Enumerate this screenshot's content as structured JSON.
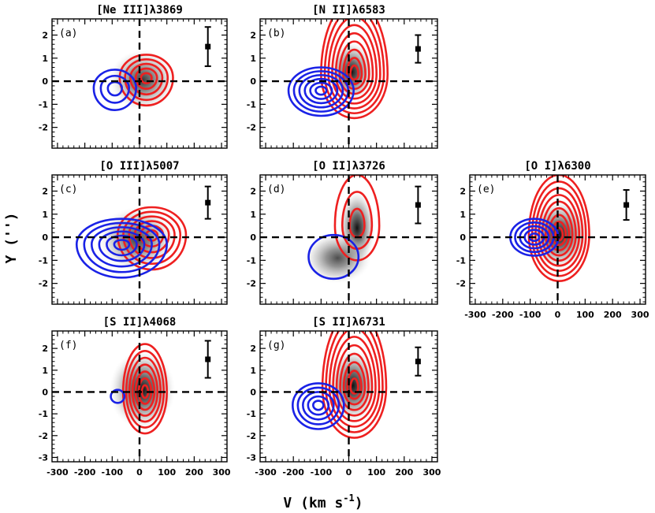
{
  "figure": {
    "xlabel": "V (km s",
    "xlabel_sup": "-1",
    "xlabel_close": ")",
    "ylabel": "Y ('')"
  },
  "chart_data": [
    {
      "type": "contour",
      "panel": "(a)",
      "title": "[Ne III]λ3869",
      "x_ticks": [
        -300,
        -200,
        -100,
        0,
        100,
        200,
        300
      ],
      "y_ticks": [
        2,
        1,
        0,
        -1,
        -2
      ],
      "xlim": [
        -320,
        320
      ],
      "ylim": [
        -2.9,
        2.7
      ],
      "x_tick_labels_shown": false,
      "grey": [
        {
          "x": 10,
          "y": 0.05,
          "sx": 120,
          "sy": 1.3,
          "a": 0.85
        }
      ],
      "red": {
        "x": 25,
        "y": 0.15,
        "sx": [
          105,
          90
        ],
        "sy": [
          1.2,
          1.0
        ],
        "levels": 5
      },
      "blue": {
        "x": -90,
        "y": -0.3,
        "sx": [
          85,
          70
        ],
        "sy": [
          0.95,
          0.8
        ],
        "levels": 3
      },
      "errorbar": {
        "x": 250,
        "y": 1.5,
        "err": 0.85
      }
    },
    {
      "type": "contour",
      "panel": "(b)",
      "title": "[N II]λ6583",
      "x_ticks": [
        -300,
        -200,
        -100,
        0,
        100,
        200,
        300
      ],
      "y_ticks": [
        2,
        1,
        0,
        -1,
        -2
      ],
      "xlim": [
        -320,
        320
      ],
      "ylim": [
        -2.9,
        2.7
      ],
      "x_tick_labels_shown": false,
      "grey": [
        {
          "x": 10,
          "y": 0.4,
          "sx": 80,
          "sy": 1.3,
          "a": 1.0
        }
      ],
      "red": {
        "x": 20,
        "y": 0.3,
        "sx": [
          120,
          120
        ],
        "sy": [
          1.9,
          3.2
        ],
        "levels": 9
      },
      "blue": {
        "x": -100,
        "y": -0.4,
        "sx": [
          135,
          100
        ],
        "sy": [
          1.1,
          1.0
        ],
        "levels": 6
      },
      "errorbar": {
        "x": 250,
        "y": 1.4,
        "err": 0.6
      }
    },
    {
      "type": "contour",
      "panel": "(c)",
      "title": "[O III]λ5007",
      "x_ticks": [
        -300,
        -200,
        -100,
        0,
        100,
        200,
        300
      ],
      "y_ticks": [
        2,
        1,
        0,
        -1,
        -2
      ],
      "xlim": [
        -320,
        320
      ],
      "ylim": [
        -2.9,
        2.7
      ],
      "x_tick_labels_shown": false,
      "grey": [
        {
          "x": -10,
          "y": -0.1,
          "sx": 140,
          "sy": 1.4,
          "a": 0.8
        }
      ],
      "red": {
        "x": 45,
        "y": 0.1,
        "sx": [
          135,
          115
        ],
        "sy": [
          1.5,
          1.2
        ],
        "levels": 6
      },
      "blue": {
        "x": -65,
        "y": -0.3,
        "sx": [
          190,
          140
        ],
        "sy": [
          1.45,
          1.1
        ],
        "levels": 6
      },
      "errorbar": {
        "x": 250,
        "y": 1.5,
        "err": 0.7
      }
    },
    {
      "type": "contour",
      "panel": "(d)",
      "title": "[O II]λ3726",
      "x_ticks": [
        -300,
        -200,
        -100,
        0,
        100,
        200,
        300
      ],
      "y_ticks": [
        2,
        1,
        0,
        -1,
        -2
      ],
      "xlim": [
        -320,
        320
      ],
      "ylim": [
        -2.9,
        2.7
      ],
      "x_tick_labels_shown": false,
      "grey": [
        {
          "x": 30,
          "y": 0.4,
          "sx": 65,
          "sy": 1.6,
          "a": 1.0
        },
        {
          "x": -40,
          "y": -0.9,
          "sx": 120,
          "sy": 1.1,
          "a": 0.75
        }
      ],
      "red": {
        "x": 30,
        "y": 0.5,
        "sx": [
          85,
          75
        ],
        "sy": [
          1.5,
          2.2
        ],
        "levels": 3
      },
      "blue": {
        "x": -55,
        "y": -0.85,
        "sx": [
          95,
          85
        ],
        "sy": [
          0.95,
          0.95
        ],
        "levels": 1
      },
      "errorbar": {
        "x": 250,
        "y": 1.4,
        "err": 0.8
      }
    },
    {
      "type": "contour",
      "panel": "(e)",
      "title": "[O I]λ6300",
      "x_ticks": [
        -300,
        -200,
        -100,
        0,
        100,
        200,
        300
      ],
      "y_ticks": [
        2,
        1,
        0,
        -1,
        -2
      ],
      "xlim": [
        -320,
        320
      ],
      "ylim": [
        -2.9,
        2.7
      ],
      "x_tick_labels_shown": true,
      "grey": [
        {
          "x": 5,
          "y": 0.1,
          "sx": 110,
          "sy": 1.5,
          "a": 1.0
        }
      ],
      "red": {
        "x": 5,
        "y": 0.1,
        "sx": [
          110,
          110
        ],
        "sy": [
          2.0,
          2.6
        ],
        "levels": 9
      },
      "blue": {
        "x": -85,
        "y": 0.0,
        "sx": [
          95,
          80
        ],
        "sy": [
          0.8,
          0.8
        ],
        "levels": 5
      },
      "errorbar": {
        "x": 250,
        "y": 1.4,
        "err": 0.65
      }
    },
    {
      "type": "contour",
      "panel": "(f)",
      "title": "[S II]λ4068",
      "x_ticks": [
        -300,
        -200,
        -100,
        0,
        100,
        200,
        300
      ],
      "y_ticks": [
        2,
        1,
        0,
        -1,
        -2,
        -3
      ],
      "xlim": [
        -320,
        320
      ],
      "ylim": [
        -3.2,
        2.8
      ],
      "x_tick_labels_shown": true,
      "grey": [
        {
          "x": 10,
          "y": 0.1,
          "sx": 120,
          "sy": 1.8,
          "a": 1.0
        }
      ],
      "red": {
        "x": 20,
        "y": 0.0,
        "sx": [
          80,
          80
        ],
        "sy": [
          1.9,
          2.2
        ],
        "levels": 7
      },
      "blue": {
        "x": -80,
        "y": -0.2,
        "sx": [
          25,
          25
        ],
        "sy": [
          0.3,
          0.3
        ],
        "levels": 1
      },
      "errorbar": {
        "x": 250,
        "y": 1.5,
        "err": 0.85
      }
    },
    {
      "type": "contour",
      "panel": "(g)",
      "title": "[S II]λ6731",
      "x_ticks": [
        -300,
        -200,
        -100,
        0,
        100,
        200,
        300
      ],
      "y_ticks": [
        2,
        1,
        0,
        -1,
        -2,
        -3
      ],
      "xlim": [
        -320,
        320
      ],
      "ylim": [
        -3.2,
        2.8
      ],
      "x_tick_labels_shown": true,
      "grey": [
        {
          "x": 15,
          "y": 0.3,
          "sx": 85,
          "sy": 1.7,
          "a": 1.0
        }
      ],
      "red": {
        "x": 20,
        "y": 0.2,
        "sx": [
          115,
          115
        ],
        "sy": [
          2.3,
          3.5
        ],
        "levels": 9
      },
      "blue": {
        "x": -110,
        "y": -0.6,
        "sx": [
          100,
          85
        ],
        "sy": [
          1.1,
          1.0
        ],
        "levels": 5
      },
      "errorbar": {
        "x": 250,
        "y": 1.4,
        "err": 0.65
      }
    }
  ],
  "colors": {
    "red": "#ee2020",
    "blue": "#1a22e6",
    "axis": "#000000"
  }
}
